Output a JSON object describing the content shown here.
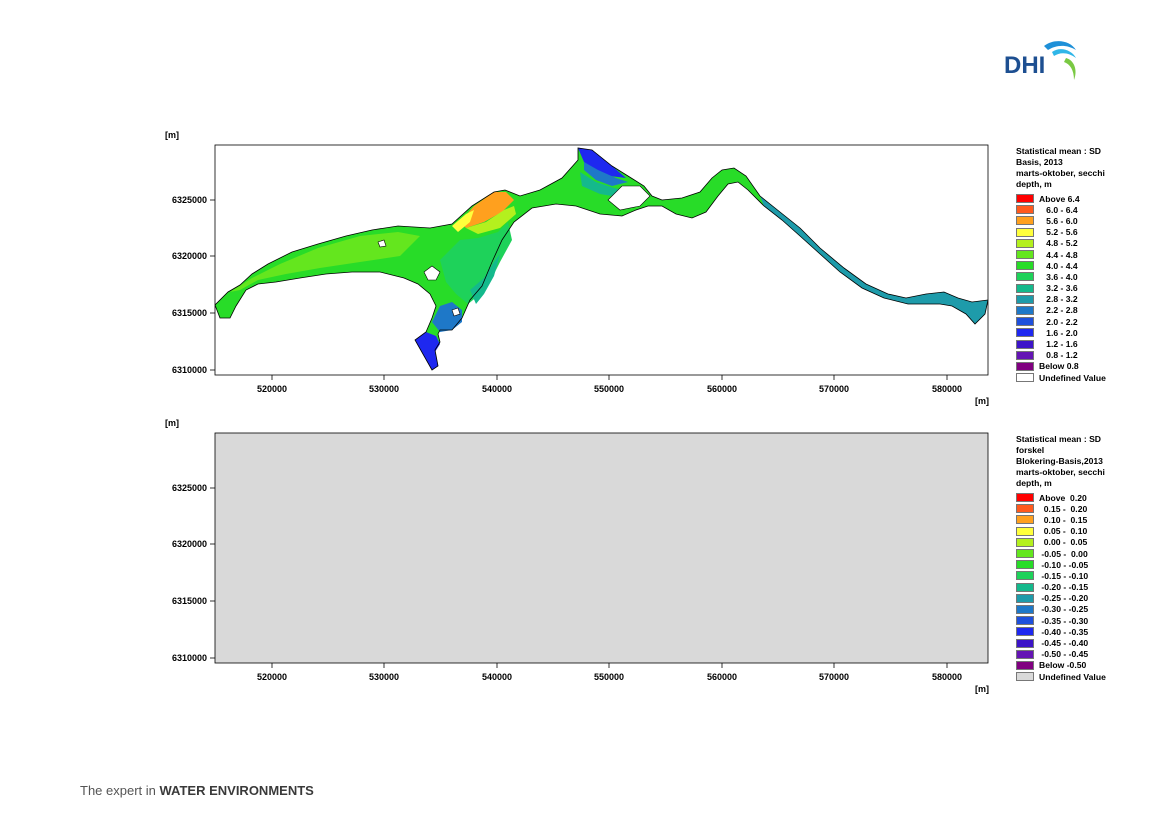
{
  "logo": {
    "text": "DHI"
  },
  "footer": {
    "prefix": "The expert in ",
    "emphasis": "WATER ENVIRONMENTS"
  },
  "maps": [
    {
      "id": "top",
      "y_unit": "[m]",
      "x_unit": "[m]",
      "x_ticks": [
        "520000",
        "530000",
        "540000",
        "550000",
        "560000",
        "570000",
        "580000"
      ],
      "y_ticks": [
        "6325000",
        "6320000",
        "6315000",
        "6310000"
      ],
      "legend_title": [
        "Statistical mean : SD",
        "Basis, 2013",
        "marts-oktober, secchi",
        "depth, m"
      ],
      "legend": [
        {
          "label": "Above 6.4",
          "color": "#ff0000"
        },
        {
          "label": "   6.0 - 6.4",
          "color": "#ff5a1e"
        },
        {
          "label": "   5.6 - 6.0",
          "color": "#ffa01e"
        },
        {
          "label": "   5.2 - 5.6",
          "color": "#ffff3c"
        },
        {
          "label": "   4.8 - 5.2",
          "color": "#b4f01e"
        },
        {
          "label": "   4.4 - 4.8",
          "color": "#64e61e"
        },
        {
          "label": "   4.0 - 4.4",
          "color": "#28dc28"
        },
        {
          "label": "   3.6 - 4.0",
          "color": "#1ed25a"
        },
        {
          "label": "   3.2 - 3.6",
          "color": "#14b98c"
        },
        {
          "label": "   2.8 - 3.2",
          "color": "#1e9baa"
        },
        {
          "label": "   2.2 - 2.8",
          "color": "#1e78c8"
        },
        {
          "label": "   2.0 - 2.2",
          "color": "#1e50dc"
        },
        {
          "label": "   1.6 - 2.0",
          "color": "#1e28f0"
        },
        {
          "label": "   1.2 - 1.6",
          "color": "#3c14c8"
        },
        {
          "label": "   0.8 - 1.2",
          "color": "#6414b4"
        },
        {
          "label": "Below 0.8",
          "color": "#800080"
        },
        {
          "label": "Undefined Value",
          "color": "#ffffff"
        }
      ]
    },
    {
      "id": "bottom",
      "y_unit": "[m]",
      "x_unit": "[m]",
      "x_ticks": [
        "520000",
        "530000",
        "540000",
        "550000",
        "560000",
        "570000",
        "580000"
      ],
      "y_ticks": [
        "6325000",
        "6320000",
        "6315000",
        "6310000"
      ],
      "legend_title": [
        "Statistical mean : SD",
        "forskel",
        "Blokering-Basis,2013",
        "marts-oktober, secchi",
        "depth, m"
      ],
      "legend": [
        {
          "label": "Above  0.20",
          "color": "#ff0000"
        },
        {
          "label": "  0.15 -  0.20",
          "color": "#ff5a1e"
        },
        {
          "label": "  0.10 -  0.15",
          "color": "#ffa01e"
        },
        {
          "label": "  0.05 -  0.10",
          "color": "#ffff3c"
        },
        {
          "label": "  0.00 -  0.05",
          "color": "#b4f01e"
        },
        {
          "label": " -0.05 -  0.00",
          "color": "#64e61e"
        },
        {
          "label": " -0.10 - -0.05",
          "color": "#28dc28"
        },
        {
          "label": " -0.15 - -0.10",
          "color": "#1ed25a"
        },
        {
          "label": " -0.20 - -0.15",
          "color": "#14b98c"
        },
        {
          "label": " -0.25 - -0.20",
          "color": "#1e9baa"
        },
        {
          "label": " -0.30 - -0.25",
          "color": "#1e78c8"
        },
        {
          "label": " -0.35 - -0.30",
          "color": "#1e50dc"
        },
        {
          "label": " -0.40 - -0.35",
          "color": "#1e28f0"
        },
        {
          "label": " -0.45 - -0.40",
          "color": "#3c14c8"
        },
        {
          "label": " -0.50 - -0.45",
          "color": "#6414b4"
        },
        {
          "label": "Below -0.50",
          "color": "#800080"
        },
        {
          "label": "Undefined Value",
          "color": "#d9d9d9"
        }
      ]
    }
  ]
}
